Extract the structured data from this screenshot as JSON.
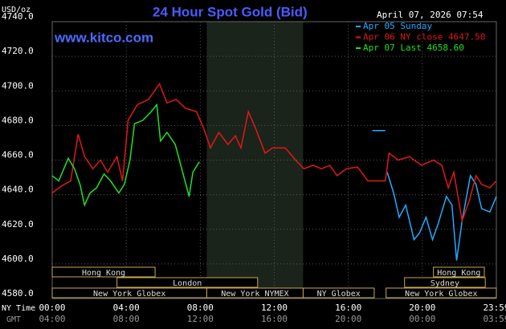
{
  "chart_data": {
    "type": "line",
    "title": "24 Hour Spot Gold (Bid)",
    "subtitle": "April 07, 2026 07:54",
    "watermark": "www.kitco.com",
    "ylabel": "USD/oz",
    "xlabel": "NY Time",
    "x2label": "GMT",
    "ylim": [
      4580,
      4740
    ],
    "yticks": [
      {
        "value": 4580,
        "label": "4580.0"
      },
      {
        "value": 4600,
        "label": "4600.0"
      },
      {
        "value": 4620,
        "label": "4620.0"
      },
      {
        "value": 4640,
        "label": "4640.0"
      },
      {
        "value": 4660,
        "label": "4660.0"
      },
      {
        "value": 4680,
        "label": "4680.0"
      },
      {
        "value": 4700,
        "label": "4700.0"
      },
      {
        "value": 4720,
        "label": "4720.0"
      },
      {
        "value": 4740,
        "label": "4740.0"
      }
    ],
    "xlim": [
      0,
      24
    ],
    "xticks": [
      {
        "value": 0,
        "label": "00:00"
      },
      {
        "value": 4,
        "label": "04:00"
      },
      {
        "value": 8,
        "label": "08:00"
      },
      {
        "value": 12,
        "label": "12:00"
      },
      {
        "value": 16,
        "label": "16:00"
      },
      {
        "value": 20,
        "label": "20:00"
      },
      {
        "value": 24,
        "label": "23:59"
      }
    ],
    "x2tick_labels": [
      "04:00",
      "08:00",
      "12:00",
      "16:00",
      "20:00",
      "00:00",
      "03:59"
    ],
    "grid": true,
    "shaded_region": [
      8.35,
      13.56
    ],
    "sessions": [
      {
        "label": "Hong Kong",
        "start": 0,
        "end": 5.56,
        "row": 0
      },
      {
        "label": "London",
        "start": 3.5,
        "end": 11.1,
        "row": 1
      },
      {
        "label": "New York Globex",
        "start": 0,
        "end": 8.35,
        "row": 2
      },
      {
        "label": "New York NYMEX",
        "start": 8.35,
        "end": 13.56,
        "row": 2
      },
      {
        "label": "NY Globex",
        "start": 13.56,
        "end": 17.4,
        "row": 2
      },
      {
        "label": "Hong Kong",
        "start": 20.6,
        "end": 23.35,
        "row": 0
      },
      {
        "label": "Sydney",
        "start": 19.04,
        "end": 23.4,
        "row": 1
      },
      {
        "label": "New York Globex",
        "start": 18.04,
        "end": 24,
        "row": 2
      }
    ],
    "series": [
      {
        "name": "Apr 05 Sunday",
        "color": "#22aaff",
        "x": [
          17.3,
          18.0,
          18.02,
          18.1,
          18.45,
          18.75,
          19.1,
          19.55,
          19.85,
          20.2,
          20.55,
          20.85,
          21.3,
          21.6,
          21.85,
          22.15,
          22.6,
          22.9,
          23.2,
          23.65,
          24
        ],
        "values": [
          4677,
          4677,
          null,
          4653,
          4641,
          4627,
          4634,
          4614,
          4618,
          4627,
          4614,
          4623,
          4639,
          4634,
          4602,
          4625,
          4651,
          4646,
          4632,
          4630,
          4639
        ]
      },
      {
        "name": "Apr 06 NY close 4647.50",
        "color": "#e01818",
        "x": [
          0,
          0.5,
          1,
          1.4,
          1.75,
          2.2,
          2.6,
          3,
          3.5,
          3.8,
          4.1,
          4.6,
          5.2,
          5.8,
          6.2,
          6.7,
          7.2,
          7.8,
          8.2,
          8.55,
          9,
          9.5,
          9.9,
          10.2,
          10.6,
          11,
          11.5,
          11.9,
          12.6,
          13.15,
          13.6,
          14.1,
          14.55,
          15,
          15.4,
          15.9,
          16.5,
          17.05,
          18,
          18.2,
          18.7,
          19.3,
          19.95,
          20.6,
          21.05,
          21.4,
          21.7,
          22.15,
          22.55,
          22.9,
          23.2,
          23.65,
          24
        ],
        "values": [
          4641,
          4645,
          4648,
          4675,
          4662,
          4655,
          4660,
          4653,
          4662,
          4648,
          4683,
          4692,
          4695,
          4704,
          4693,
          4695,
          4690,
          4688,
          4678,
          4667,
          4676,
          4669,
          4674,
          4667,
          4688,
          4678,
          4664,
          4667,
          4667,
          4660,
          4655,
          4657,
          4655,
          4657,
          4651,
          4655,
          4656,
          4648,
          4648,
          4664,
          4660,
          4662,
          4657,
          4660,
          4657,
          4644,
          4653,
          4625,
          4637,
          4651,
          4646,
          4644,
          4648
        ]
      },
      {
        "name": "Apr 07 Last 4658.60",
        "color": "#22e022",
        "x": [
          0,
          0.35,
          0.87,
          1.2,
          1.5,
          1.75,
          2.05,
          2.4,
          2.8,
          3.15,
          3.6,
          3.9,
          4.2,
          4.45,
          4.9,
          5.35,
          5.65,
          5.85,
          6.2,
          6.65,
          7.05,
          7.4,
          7.6,
          7.95
        ],
        "values": [
          4651,
          4648,
          4661,
          4655,
          4646,
          4634,
          4641,
          4644,
          4652,
          4648,
          4641,
          4646,
          4660,
          4681,
          4683,
          4688,
          4692,
          4671,
          4676,
          4669,
          4653,
          4639,
          4653,
          4659
        ]
      }
    ]
  }
}
